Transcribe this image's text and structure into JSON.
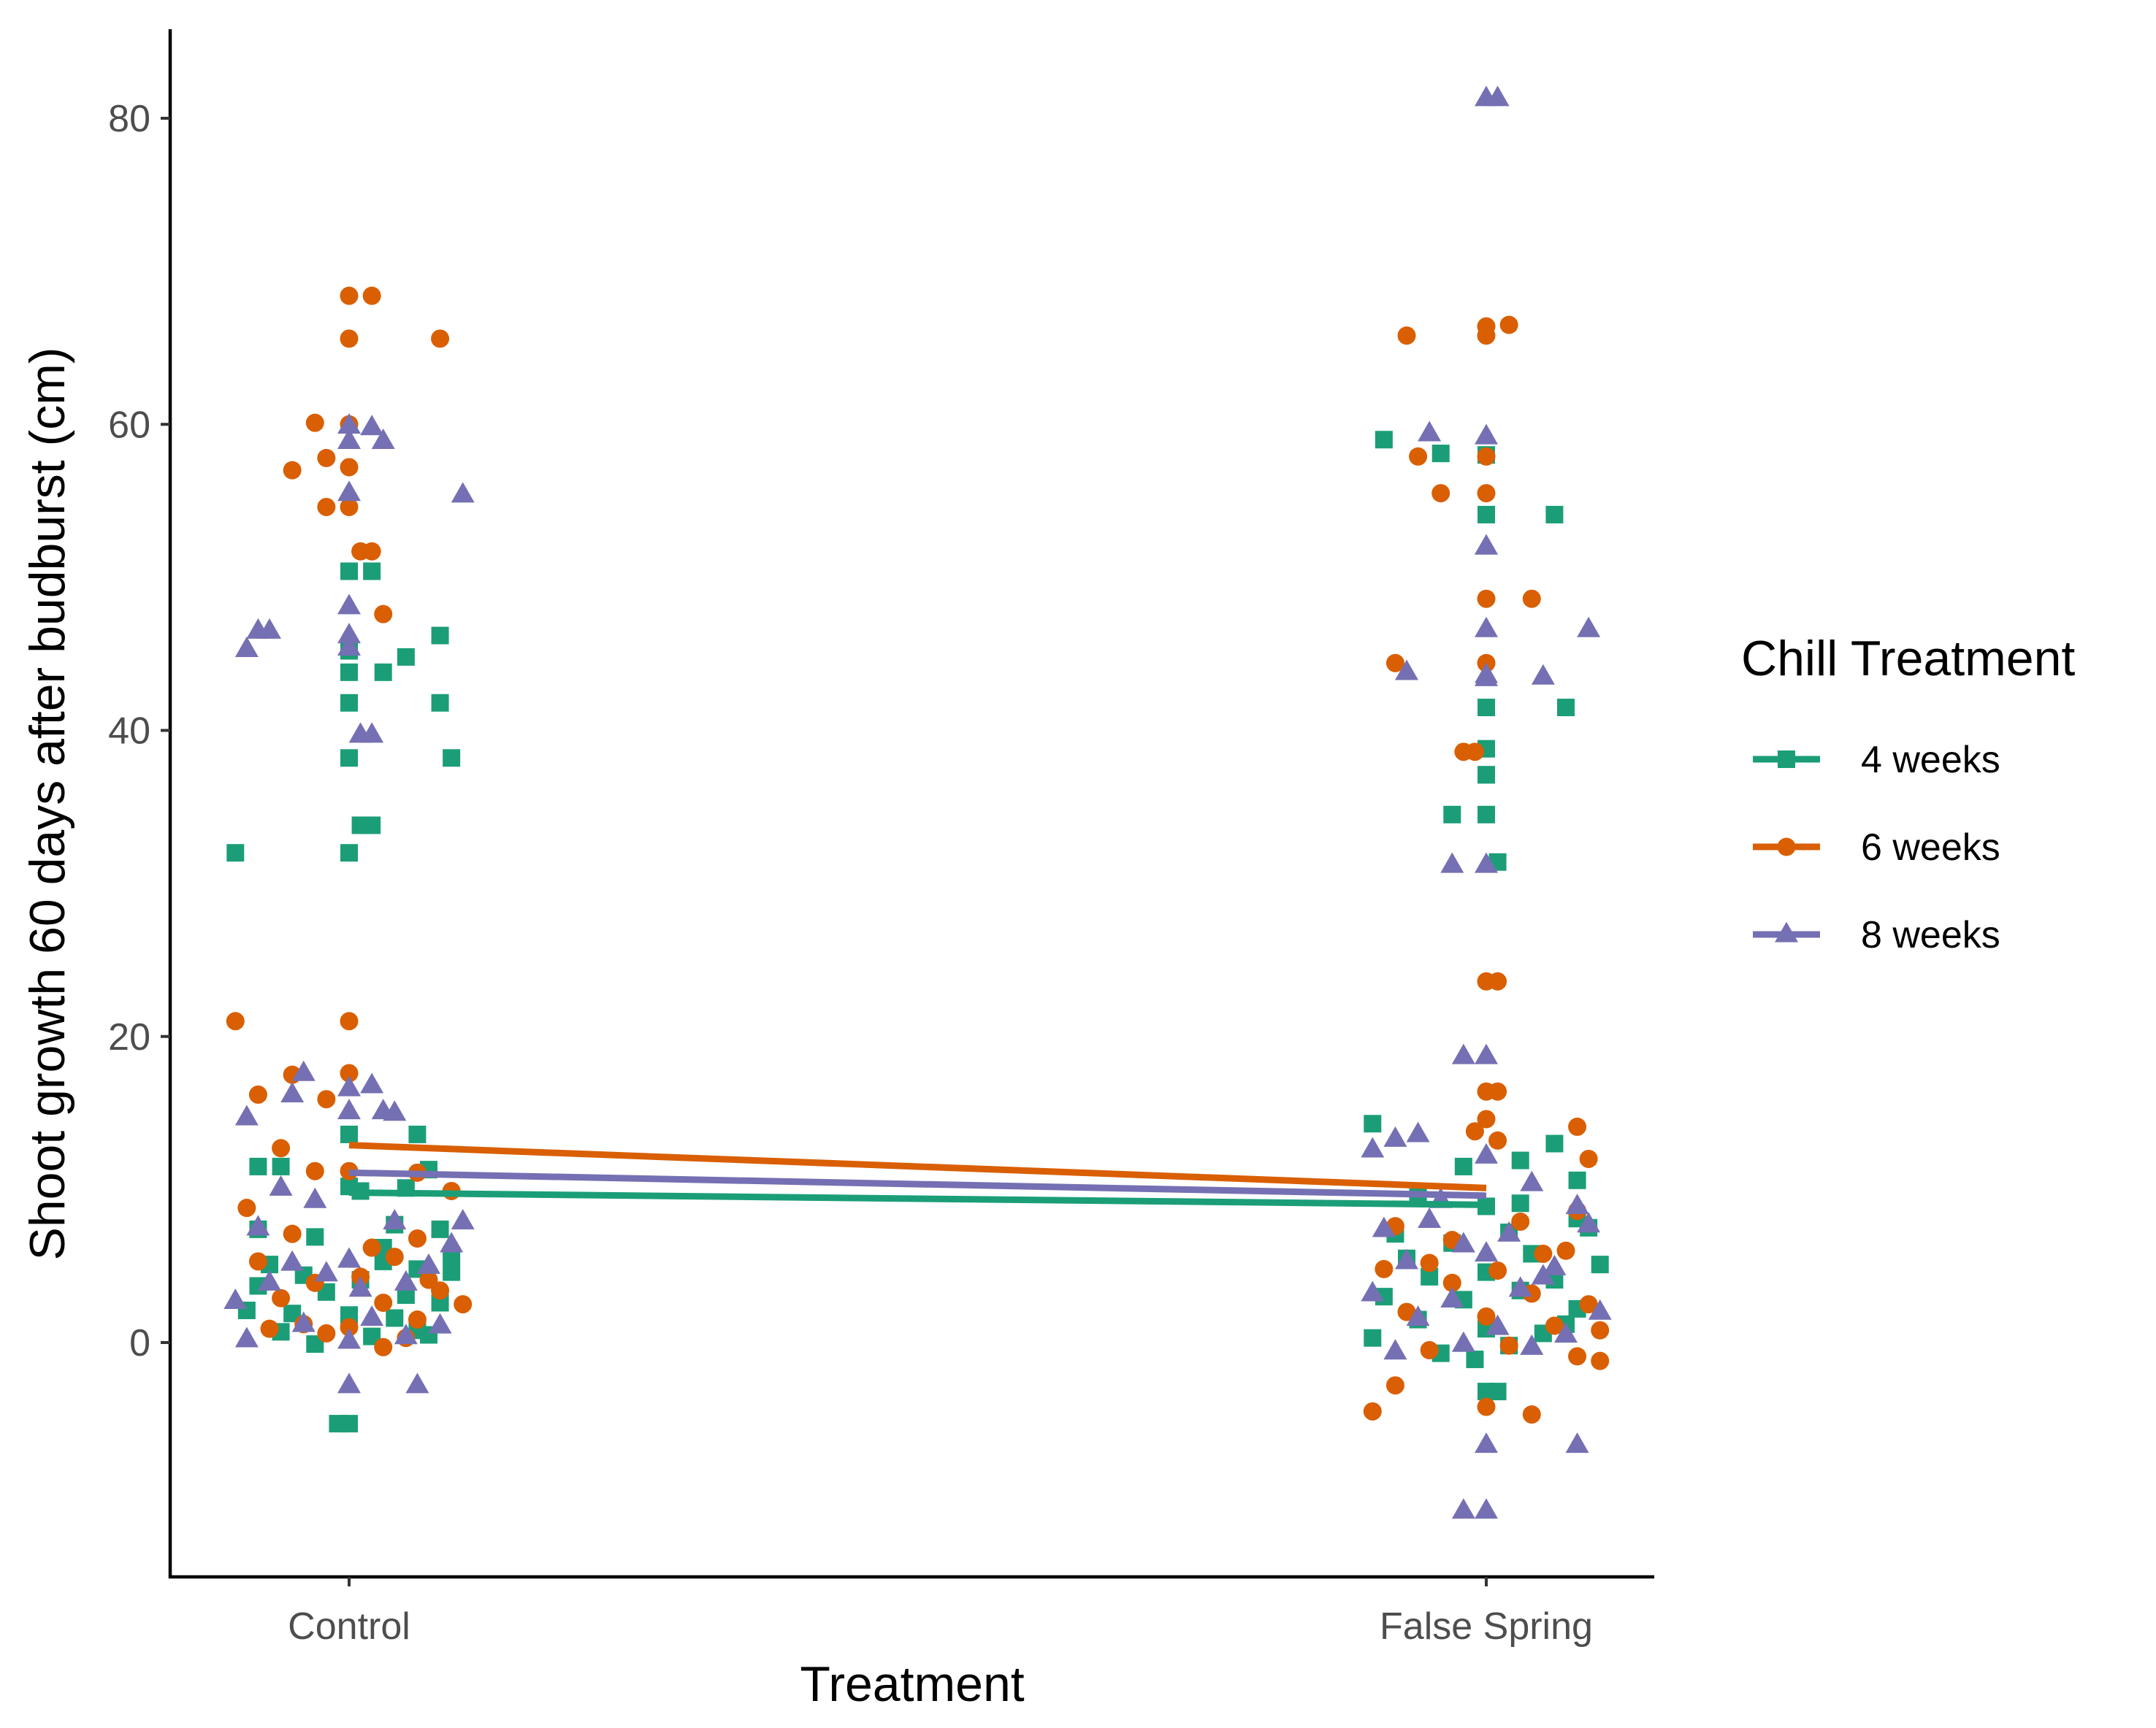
{
  "chart_data": {
    "type": "scatter",
    "xlabel": "Treatment",
    "ylabel": "Shoot growth 60 days after budburst (cm)",
    "categories": [
      "Control",
      "False Spring"
    ],
    "ylim": [
      -15.6,
      85.9
    ],
    "yticks": [
      0,
      20,
      40,
      60,
      80
    ],
    "grid": false,
    "legend": {
      "title": "Chill Treatment",
      "position": "right"
    },
    "colors": {
      "4 weeks": "#1b9e77",
      "6 weeks": "#d95f02",
      "8 weeks": "#7570b3"
    },
    "series": [
      {
        "name": "4 weeks",
        "color": "#1b9e77",
        "marker": "square",
        "line": [
          9.8,
          9.0
        ],
        "points": [
          [
            -0.1,
            32.0
          ],
          [
            0.0,
            32.0
          ],
          [
            0.01,
            33.8
          ],
          [
            0.02,
            33.8
          ],
          [
            0.0,
            38.2
          ],
          [
            0.09,
            38.2
          ],
          [
            0.0,
            41.8
          ],
          [
            0.08,
            41.8
          ],
          [
            0.0,
            43.8
          ],
          [
            0.03,
            43.8
          ],
          [
            0.05,
            44.8
          ],
          [
            0.0,
            45.2
          ],
          [
            0.08,
            46.2
          ],
          [
            0.0,
            50.4
          ],
          [
            0.02,
            50.4
          ],
          [
            -0.01,
            -5.3
          ],
          [
            0.0,
            -5.3
          ],
          [
            -0.08,
            11.5
          ],
          [
            -0.06,
            11.5
          ],
          [
            0.0,
            13.6
          ],
          [
            0.06,
            13.6
          ],
          [
            0.07,
            11.3
          ],
          [
            0.0,
            10.2
          ],
          [
            0.01,
            9.9
          ],
          [
            0.05,
            10.1
          ],
          [
            -0.08,
            7.4
          ],
          [
            -0.03,
            6.9
          ],
          [
            0.04,
            7.7
          ],
          [
            0.08,
            7.4
          ],
          [
            0.09,
            5.7
          ],
          [
            -0.07,
            5.1
          ],
          [
            0.03,
            5.3
          ],
          [
            0.06,
            4.8
          ],
          [
            -0.04,
            4.4
          ],
          [
            0.01,
            4.1
          ],
          [
            -0.02,
            3.3
          ],
          [
            0.05,
            3.1
          ],
          [
            0.08,
            2.6
          ],
          [
            -0.09,
            2.1
          ],
          [
            -0.05,
            1.9
          ],
          [
            0.0,
            1.8
          ],
          [
            0.04,
            1.6
          ],
          [
            -0.06,
            0.7
          ],
          [
            0.02,
            0.4
          ],
          [
            0.07,
            0.5
          ],
          [
            -0.03,
            -0.1
          ],
          [
            0.06,
            0.8
          ],
          [
            -0.08,
            3.7
          ],
          [
            0.03,
            6.2
          ],
          [
            0.09,
            4.6
          ],
          [
            0.91,
            59.0
          ],
          [
            0.96,
            58.1
          ],
          [
            1.0,
            58.0
          ],
          [
            1.0,
            54.1
          ],
          [
            1.06,
            54.1
          ],
          [
            1.0,
            41.5
          ],
          [
            1.07,
            41.5
          ],
          [
            1.0,
            38.8
          ],
          [
            1.0,
            37.1
          ],
          [
            1.0,
            37.1
          ],
          [
            0.97,
            34.5
          ],
          [
            1.0,
            34.5
          ],
          [
            1.01,
            31.4
          ],
          [
            1.0,
            -3.2
          ],
          [
            1.01,
            -3.2
          ],
          [
            0.9,
            14.3
          ],
          [
            0.98,
            11.5
          ],
          [
            1.06,
            13.0
          ],
          [
            1.03,
            11.9
          ],
          [
            1.08,
            10.6
          ],
          [
            0.94,
            9.5
          ],
          [
            1.0,
            8.9
          ],
          [
            1.03,
            9.1
          ],
          [
            1.08,
            8.1
          ],
          [
            0.92,
            7.1
          ],
          [
            0.97,
            6.5
          ],
          [
            1.02,
            7.2
          ],
          [
            1.09,
            7.5
          ],
          [
            0.93,
            5.5
          ],
          [
            1.04,
            5.8
          ],
          [
            1.1,
            5.1
          ],
          [
            0.95,
            4.3
          ],
          [
            1.0,
            4.6
          ],
          [
            1.06,
            4.1
          ],
          [
            0.91,
            3.0
          ],
          [
            0.98,
            2.8
          ],
          [
            1.03,
            3.4
          ],
          [
            1.08,
            2.2
          ],
          [
            0.94,
            1.5
          ],
          [
            1.0,
            0.9
          ],
          [
            1.07,
            1.2
          ],
          [
            0.9,
            0.3
          ],
          [
            0.96,
            -0.7
          ],
          [
            1.02,
            -0.2
          ],
          [
            1.05,
            0.6
          ],
          [
            0.99,
            -1.1
          ]
        ]
      },
      {
        "name": "6 weeks",
        "color": "#d95f02",
        "marker": "circle",
        "line": [
          12.9,
          10.1
        ],
        "points": [
          [
            0.0,
            68.4
          ],
          [
            0.02,
            68.4
          ],
          [
            0.0,
            65.6
          ],
          [
            0.08,
            65.6
          ],
          [
            -0.03,
            60.1
          ],
          [
            0.0,
            60.0
          ],
          [
            -0.02,
            57.8
          ],
          [
            0.0,
            57.2
          ],
          [
            -0.05,
            57.0
          ],
          [
            -0.02,
            54.6
          ],
          [
            0.0,
            54.6
          ],
          [
            0.01,
            51.7
          ],
          [
            0.02,
            51.7
          ],
          [
            0.03,
            47.6
          ],
          [
            -0.1,
            21.0
          ],
          [
            0.0,
            21.0
          ],
          [
            -0.08,
            16.2
          ],
          [
            -0.05,
            17.5
          ],
          [
            0.0,
            17.6
          ],
          [
            -0.02,
            15.9
          ],
          [
            0.06,
            11.1
          ],
          [
            0.0,
            11.2
          ],
          [
            -0.03,
            11.2
          ],
          [
            -0.06,
            12.7
          ],
          [
            -0.09,
            8.8
          ],
          [
            0.09,
            9.9
          ],
          [
            -0.05,
            7.1
          ],
          [
            0.02,
            6.2
          ],
          [
            0.06,
            6.8
          ],
          [
            -0.08,
            5.3
          ],
          [
            0.04,
            5.6
          ],
          [
            -0.03,
            3.9
          ],
          [
            0.01,
            4.3
          ],
          [
            0.07,
            4.1
          ],
          [
            -0.06,
            2.9
          ],
          [
            0.03,
            2.6
          ],
          [
            0.1,
            2.5
          ],
          [
            -0.04,
            1.2
          ],
          [
            0.0,
            1.0
          ],
          [
            0.06,
            1.5
          ],
          [
            -0.02,
            0.6
          ],
          [
            0.05,
            0.3
          ],
          [
            0.03,
            -0.3
          ],
          [
            -0.07,
            0.9
          ],
          [
            0.08,
            3.4
          ],
          [
            0.93,
            65.8
          ],
          [
            1.0,
            66.4
          ],
          [
            1.0,
            65.8
          ],
          [
            1.02,
            66.5
          ],
          [
            0.94,
            57.9
          ],
          [
            1.0,
            57.9
          ],
          [
            0.96,
            55.5
          ],
          [
            1.0,
            55.5
          ],
          [
            1.0,
            48.6
          ],
          [
            1.04,
            48.6
          ],
          [
            0.92,
            44.4
          ],
          [
            1.0,
            44.4
          ],
          [
            0.98,
            38.6
          ],
          [
            0.99,
            38.6
          ],
          [
            1.0,
            23.6
          ],
          [
            1.01,
            23.6
          ],
          [
            1.0,
            16.4
          ],
          [
            1.01,
            16.4
          ],
          [
            1.0,
            14.6
          ],
          [
            0.99,
            13.8
          ],
          [
            1.01,
            13.2
          ],
          [
            1.08,
            14.1
          ],
          [
            1.09,
            12.0
          ],
          [
            0.92,
            7.6
          ],
          [
            1.03,
            7.9
          ],
          [
            1.05,
            5.8
          ],
          [
            0.95,
            5.2
          ],
          [
            1.01,
            4.7
          ],
          [
            1.07,
            6.0
          ],
          [
            0.91,
            4.8
          ],
          [
            0.97,
            3.9
          ],
          [
            1.04,
            3.2
          ],
          [
            1.09,
            2.5
          ],
          [
            0.93,
            2.0
          ],
          [
            1.0,
            1.7
          ],
          [
            1.06,
            1.1
          ],
          [
            0.95,
            -0.5
          ],
          [
            1.02,
            -0.2
          ],
          [
            1.08,
            -0.9
          ],
          [
            0.92,
            -2.8
          ],
          [
            1.0,
            -4.2
          ],
          [
            1.04,
            -4.7
          ],
          [
            0.9,
            -4.5
          ],
          [
            1.1,
            -1.2
          ],
          [
            1.1,
            0.8
          ],
          [
            1.08,
            8.6
          ],
          [
            0.97,
            6.7
          ]
        ]
      },
      {
        "name": "8 weeks",
        "color": "#7570b3",
        "marker": "triangle",
        "line": [
          11.1,
          9.6
        ],
        "points": [
          [
            -0.09,
            45.3
          ],
          [
            -0.08,
            46.5
          ],
          [
            -0.07,
            46.5
          ],
          [
            0.0,
            48.1
          ],
          [
            0.0,
            46.2
          ],
          [
            0.0,
            45.4
          ],
          [
            0.01,
            39.7
          ],
          [
            0.02,
            39.7
          ],
          [
            0.0,
            55.5
          ],
          [
            0.0,
            58.9
          ],
          [
            0.0,
            59.9
          ],
          [
            0.02,
            59.8
          ],
          [
            0.03,
            58.9
          ],
          [
            0.1,
            55.4
          ],
          [
            -0.09,
            14.7
          ],
          [
            -0.05,
            16.2
          ],
          [
            -0.04,
            17.6
          ],
          [
            0.0,
            16.6
          ],
          [
            0.02,
            16.8
          ],
          [
            0.03,
            15.1
          ],
          [
            0.04,
            15.0
          ],
          [
            0.0,
            15.1
          ],
          [
            -0.06,
            10.1
          ],
          [
            -0.03,
            9.3
          ],
          [
            -0.08,
            7.5
          ],
          [
            0.04,
            7.9
          ],
          [
            0.1,
            7.9
          ],
          [
            -0.05,
            5.2
          ],
          [
            0.0,
            5.4
          ],
          [
            0.07,
            5.0
          ],
          [
            -0.1,
            2.7
          ],
          [
            -0.07,
            3.9
          ],
          [
            0.01,
            3.5
          ],
          [
            0.05,
            3.9
          ],
          [
            -0.04,
            1.2
          ],
          [
            0.02,
            1.6
          ],
          [
            0.08,
            1.1
          ],
          [
            -0.09,
            0.2
          ],
          [
            0.0,
            0.1
          ],
          [
            0.05,
            0.4
          ],
          [
            0.0,
            -2.8
          ],
          [
            0.06,
            -2.8
          ],
          [
            -0.02,
            4.5
          ],
          [
            0.09,
            6.4
          ],
          [
            1.0,
            81.3
          ],
          [
            1.01,
            81.3
          ],
          [
            0.95,
            59.4
          ],
          [
            1.0,
            59.2
          ],
          [
            1.0,
            52.0
          ],
          [
            1.0,
            52.0
          ],
          [
            1.09,
            46.6
          ],
          [
            1.0,
            46.6
          ],
          [
            0.93,
            43.8
          ],
          [
            1.0,
            43.4
          ],
          [
            1.0,
            43.6
          ],
          [
            1.05,
            43.5
          ],
          [
            0.97,
            31.2
          ],
          [
            1.0,
            31.2
          ],
          [
            0.98,
            18.7
          ],
          [
            1.0,
            18.7
          ],
          [
            0.9,
            12.6
          ],
          [
            0.92,
            13.3
          ],
          [
            0.94,
            13.6
          ],
          [
            1.0,
            12.2
          ],
          [
            1.04,
            10.4
          ],
          [
            0.96,
            9.3
          ],
          [
            1.08,
            8.9
          ],
          [
            0.91,
            7.4
          ],
          [
            0.98,
            6.4
          ],
          [
            1.02,
            7.1
          ],
          [
            1.09,
            7.7
          ],
          [
            0.93,
            5.3
          ],
          [
            1.0,
            5.8
          ],
          [
            1.05,
            4.3
          ],
          [
            0.9,
            3.2
          ],
          [
            0.97,
            2.8
          ],
          [
            1.03,
            3.5
          ],
          [
            1.1,
            2.0
          ],
          [
            0.94,
            1.6
          ],
          [
            1.01,
            1.0
          ],
          [
            1.07,
            0.5
          ],
          [
            0.98,
            -0.1
          ],
          [
            1.04,
            -0.3
          ],
          [
            0.92,
            -0.6
          ],
          [
            1.0,
            -6.7
          ],
          [
            1.08,
            -6.7
          ],
          [
            0.98,
            -11.0
          ],
          [
            1.0,
            -11.0
          ],
          [
            1.06,
            4.9
          ],
          [
            0.95,
            8.0
          ]
        ]
      }
    ]
  }
}
